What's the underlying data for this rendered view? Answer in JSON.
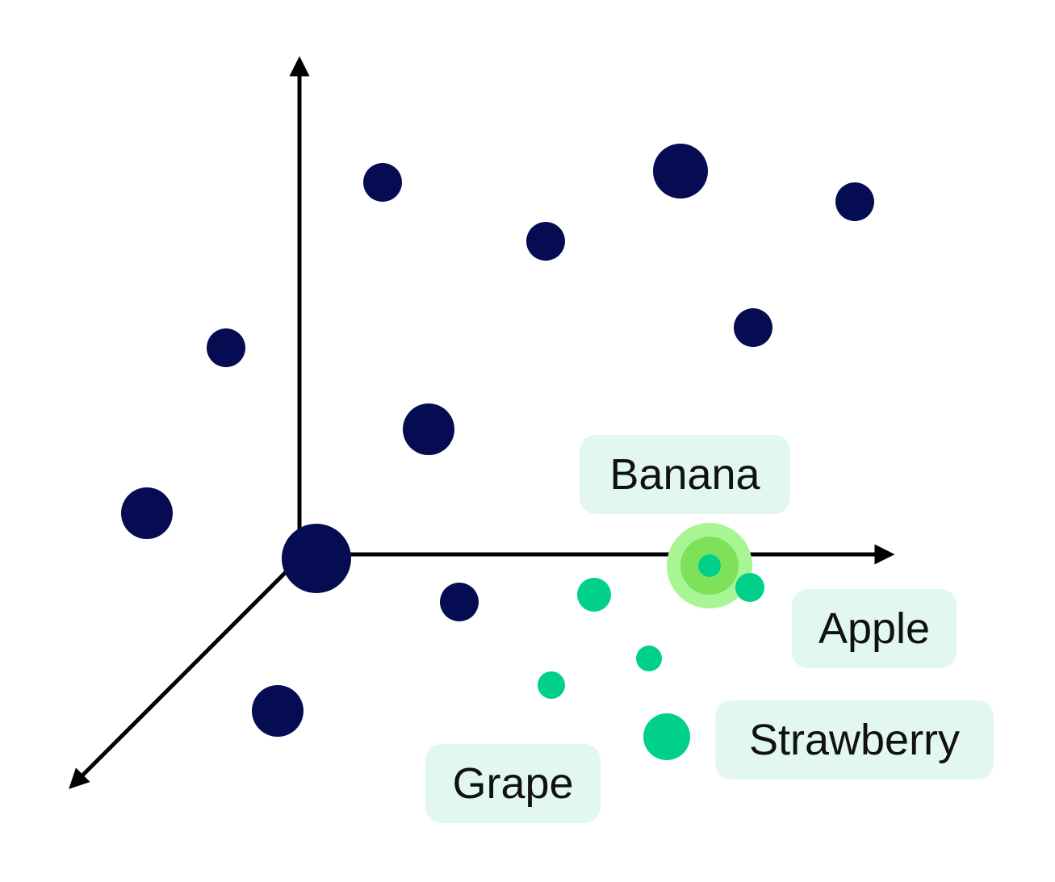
{
  "diagram": {
    "labels": {
      "banana": "Banana",
      "apple": "Apple",
      "strawberry": "Strawberry",
      "grape": "Grape"
    },
    "colors": {
      "axis": "#000000",
      "cluster_other": "#050c52",
      "cluster_fruit": "#00d08a",
      "highlight_outer": "#a8f594",
      "highlight_inner": "#7de15a",
      "label_background": "#e2f7ef",
      "background": "#ffffff"
    }
  }
}
